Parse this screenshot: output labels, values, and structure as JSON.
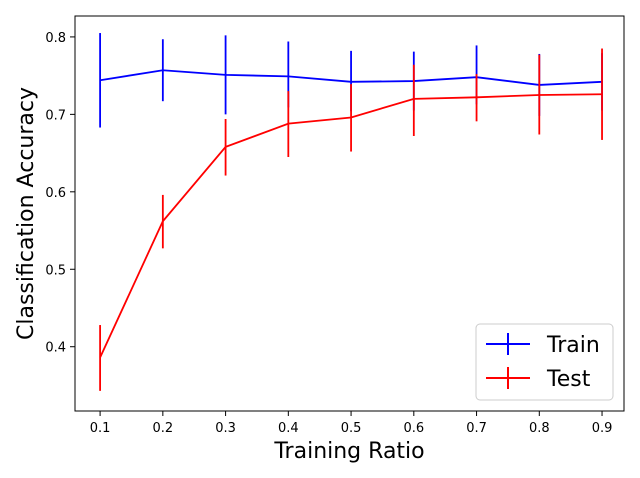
{
  "chart_data": {
    "type": "line",
    "title": "",
    "xlabel": "Training Ratio",
    "ylabel": "Classification Accuracy",
    "x": [
      0.1,
      0.2,
      0.3,
      0.4,
      0.5,
      0.6,
      0.7,
      0.8,
      0.9
    ],
    "xticks": [
      "0.1",
      "0.2",
      "0.3",
      "0.4",
      "0.5",
      "0.6",
      "0.7",
      "0.8",
      "0.9"
    ],
    "yticks": [
      "0.4",
      "0.5",
      "0.6",
      "0.7",
      "0.8"
    ],
    "ytick_values": [
      0.4,
      0.5,
      0.6,
      0.7,
      0.8
    ],
    "xlim": [
      0.06,
      0.935
    ],
    "ylim": [
      0.317,
      0.827
    ],
    "grid": false,
    "legend_position": "lower-right",
    "series": [
      {
        "name": "Train",
        "color": "#0000ff",
        "values": [
          0.744,
          0.757,
          0.751,
          0.749,
          0.742,
          0.743,
          0.748,
          0.738,
          0.742
        ],
        "err_low": [
          0.683,
          0.717,
          0.7,
          0.709,
          0.704,
          0.705,
          0.713,
          0.698,
          0.705
        ],
        "err_high": [
          0.805,
          0.797,
          0.802,
          0.794,
          0.782,
          0.781,
          0.789,
          0.778,
          0.779
        ]
      },
      {
        "name": "Test",
        "color": "#ff0000",
        "values": [
          0.386,
          0.562,
          0.658,
          0.688,
          0.696,
          0.72,
          0.722,
          0.725,
          0.726
        ],
        "err_low": [
          0.343,
          0.527,
          0.621,
          0.645,
          0.652,
          0.672,
          0.691,
          0.674,
          0.667
        ],
        "err_high": [
          0.428,
          0.596,
          0.694,
          0.73,
          0.739,
          0.764,
          0.752,
          0.777,
          0.785
        ]
      }
    ]
  }
}
